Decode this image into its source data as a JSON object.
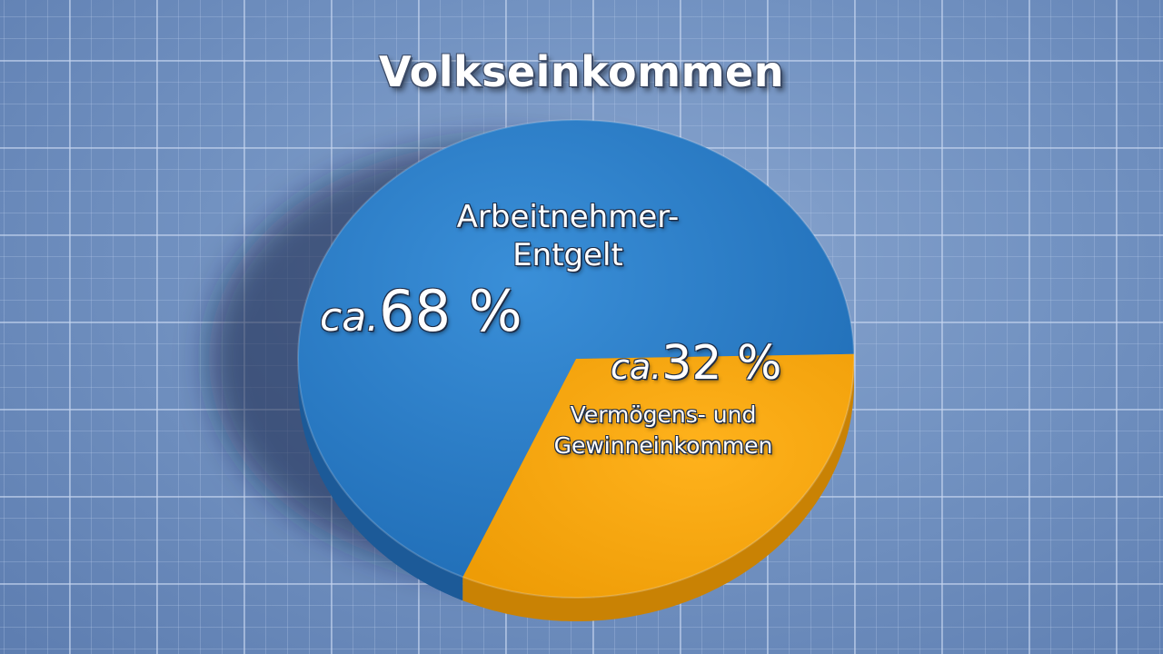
{
  "chart_data": {
    "type": "pie",
    "title": "Volkseinkommen",
    "slices": [
      {
        "label_line1": "Arbeitnehmer-",
        "label_line2": "Entgelt",
        "value": 68,
        "prefix": "ca.",
        "value_text": "68 %",
        "color": "#2a78c2"
      },
      {
        "label_line1": "Vermögens- und",
        "label_line2": "Gewinneinkommen",
        "value": 32,
        "prefix": "ca.",
        "value_text": "32 %",
        "color": "#f2a50c"
      }
    ]
  },
  "colors": {
    "background": "#7393c2",
    "grid": "#c8d7f0",
    "blue_side": "#1c5a98",
    "orange_side": "#c98204"
  }
}
